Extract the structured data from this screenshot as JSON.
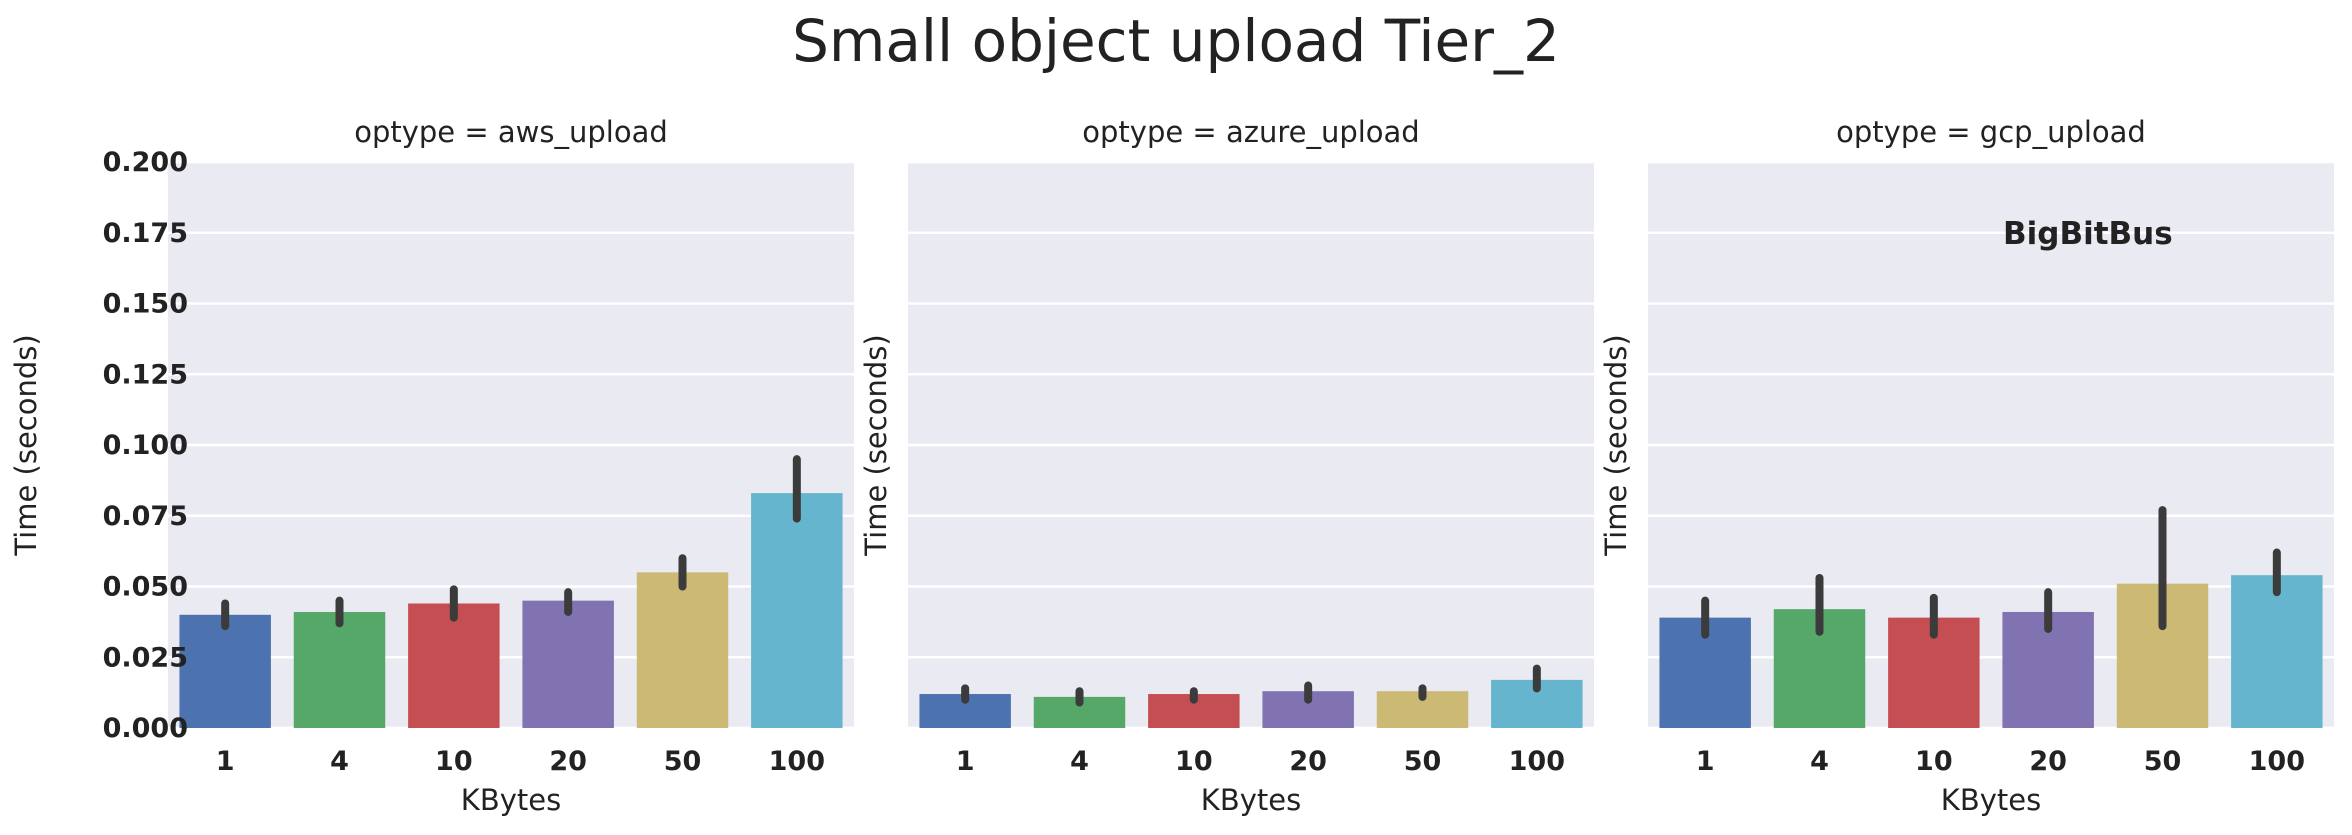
{
  "chart_data": {
    "type": "bar",
    "title": "Small object upload Tier_2",
    "watermark": "BigBitBus",
    "xlabel": "KBytes",
    "ylabel": "Time (seconds)",
    "ylim": [
      0,
      0.2
    ],
    "yticks": [
      "0.000",
      "0.025",
      "0.050",
      "0.075",
      "0.100",
      "0.125",
      "0.150",
      "0.175",
      "0.200"
    ],
    "grid": true,
    "background": "#EAEAF2",
    "colors": [
      "#4C72B0",
      "#55A868",
      "#C44E52",
      "#8172B2",
      "#CCB974",
      "#64B5CD"
    ],
    "error_bar_color": "#3b3b3b",
    "categories": [
      "1",
      "4",
      "10",
      "20",
      "50",
      "100"
    ],
    "panels": [
      {
        "title": "optype = aws_upload",
        "values": [
          0.04,
          0.041,
          0.044,
          0.045,
          0.055,
          0.083
        ],
        "err_low": [
          0.036,
          0.037,
          0.039,
          0.041,
          0.05,
          0.074
        ],
        "err_high": [
          0.044,
          0.045,
          0.049,
          0.048,
          0.06,
          0.095
        ]
      },
      {
        "title": "optype = azure_upload",
        "values": [
          0.012,
          0.011,
          0.012,
          0.013,
          0.013,
          0.017
        ],
        "err_low": [
          0.01,
          0.009,
          0.01,
          0.01,
          0.011,
          0.014
        ],
        "err_high": [
          0.014,
          0.013,
          0.013,
          0.015,
          0.014,
          0.021
        ]
      },
      {
        "title": "optype = gcp_upload",
        "values": [
          0.039,
          0.042,
          0.039,
          0.041,
          0.051,
          0.054
        ],
        "err_low": [
          0.033,
          0.034,
          0.033,
          0.035,
          0.036,
          0.048
        ],
        "err_high": [
          0.045,
          0.053,
          0.046,
          0.048,
          0.077,
          0.062
        ]
      }
    ]
  }
}
